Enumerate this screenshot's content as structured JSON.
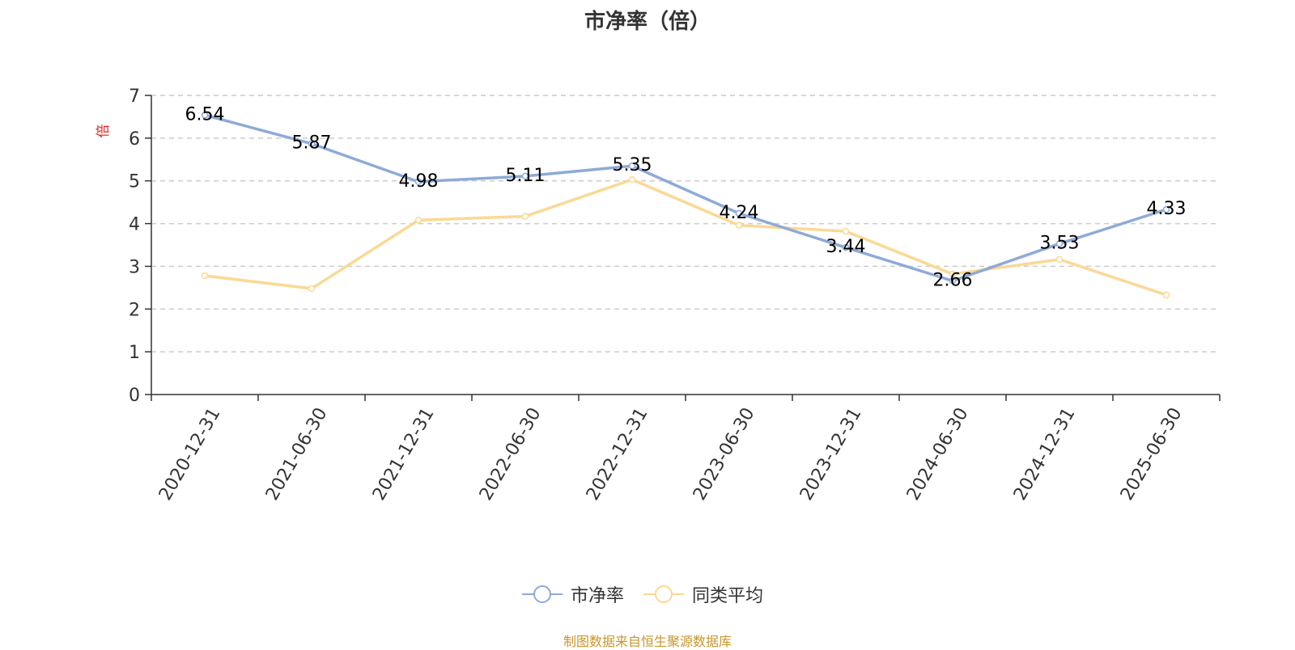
{
  "title": "市净率（倍）",
  "source_note": "制图数据来自恒生聚源数据库",
  "colors": {
    "series1": "#8eaad8",
    "series2": "#fad994",
    "axis": "#333333",
    "grid": "#cccccc",
    "unit_label": "#e0201b",
    "source_note": "#c8962b",
    "text": "#333333"
  },
  "chart_data": {
    "type": "line",
    "title": "市净率（倍）",
    "ylabel": "倍",
    "xlabel": "",
    "categories": [
      "2020-12-31",
      "2021-06-30",
      "2021-12-31",
      "2022-06-30",
      "2022-12-31",
      "2023-06-30",
      "2023-12-31",
      "2024-06-30",
      "2024-12-31",
      "2025-06-30"
    ],
    "ylim": [
      0,
      7
    ],
    "yticks": [
      0,
      1,
      2,
      3,
      4,
      5,
      6,
      7
    ],
    "grid": true,
    "legend_position": "bottom-center",
    "series": [
      {
        "name": "市净率",
        "values": [
          6.54,
          5.87,
          4.98,
          5.11,
          5.35,
          4.24,
          3.44,
          2.66,
          3.53,
          4.33
        ],
        "labels": [
          "6.54",
          "5.87",
          "4.98",
          "5.11",
          "5.35",
          "4.24",
          "3.44",
          "2.66",
          "3.53",
          "4.33"
        ]
      },
      {
        "name": "同类平均",
        "values": [
          2.78,
          2.48,
          4.08,
          4.17,
          5.03,
          3.96,
          3.82,
          2.82,
          3.16,
          2.33
        ]
      }
    ]
  }
}
